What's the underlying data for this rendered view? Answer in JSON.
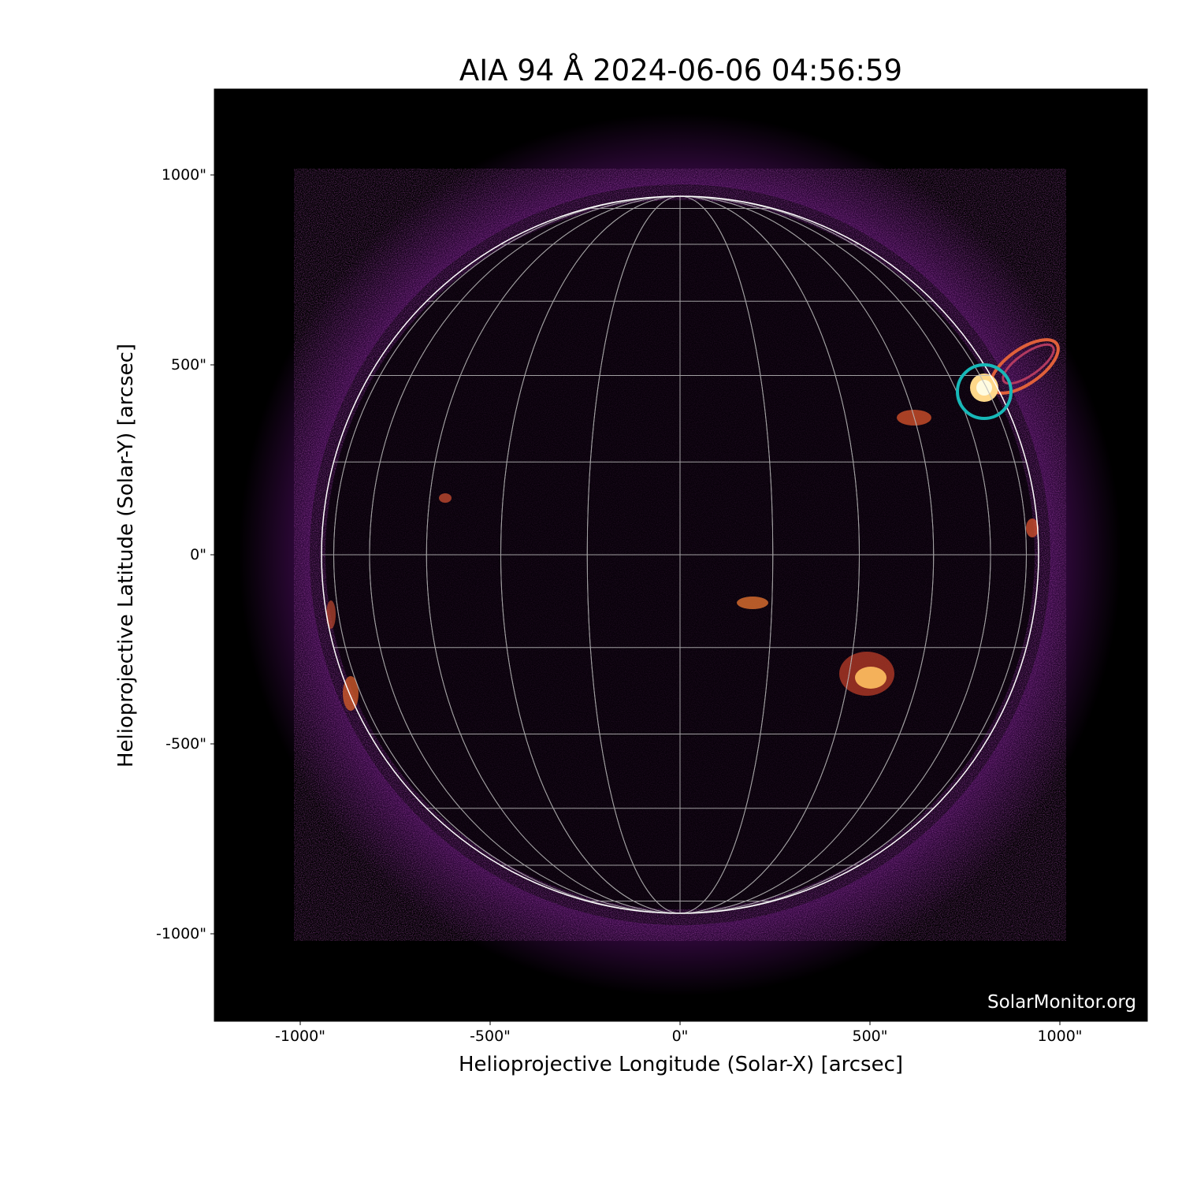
{
  "title": "AIA 94 Å 2024-06-06 04:56:59",
  "xlabel": "Helioprojective Longitude (Solar-X) [arcsec]",
  "ylabel": "Helioprojective Latitude (Solar-Y) [arcsec]",
  "xticks": [
    "-1000\"",
    "-500\"",
    "0\"",
    "500\"",
    "1000\""
  ],
  "yticks": [
    "1000\"",
    "500\"",
    "0\"",
    "-500\"",
    "-1000\""
  ],
  "watermark": "SolarMonitor.org",
  "colormap": "inferno-like (black-purple-orange-yellow)",
  "marker": {
    "shape": "circle",
    "color": "#17b8b8",
    "x_arcsec": 800,
    "y_arcsec": 430
  },
  "grid": {
    "type": "heliographic",
    "spacing_deg": 15
  }
}
